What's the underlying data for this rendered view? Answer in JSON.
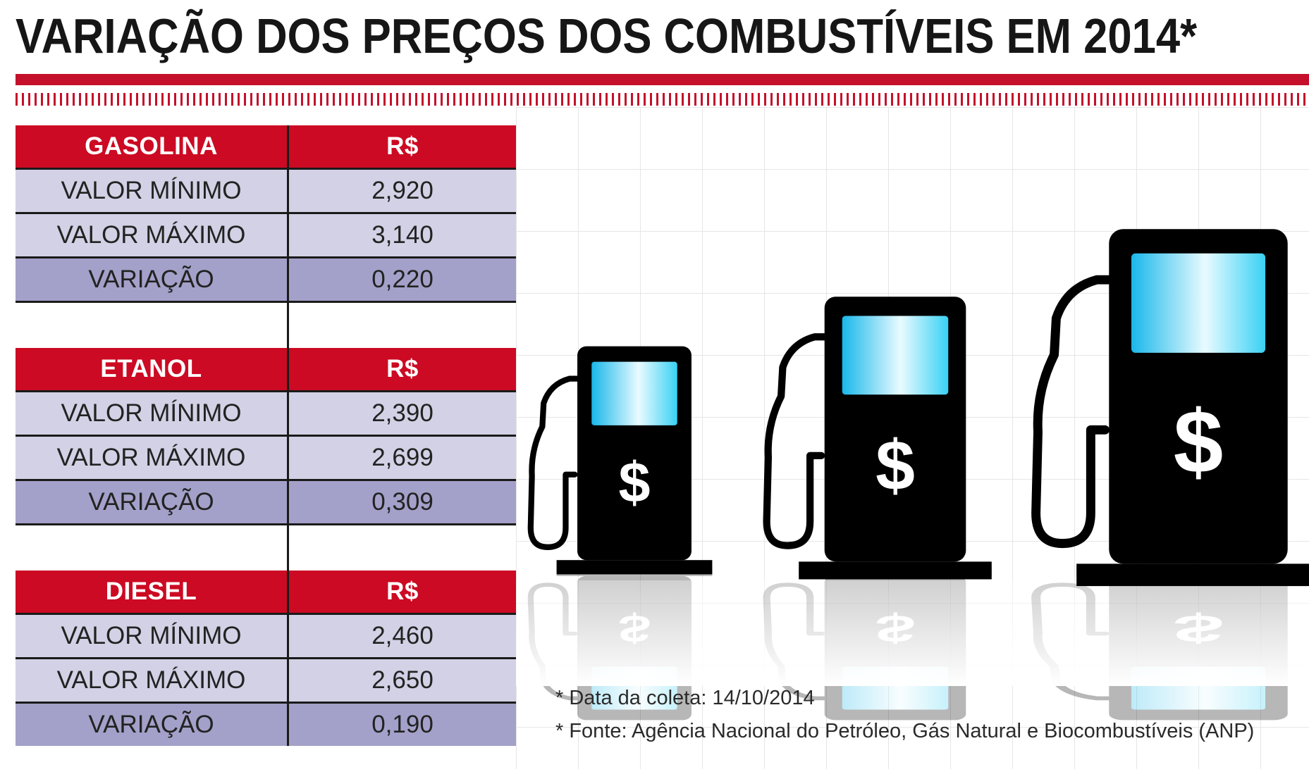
{
  "title": "VARIAÇÃO DOS PREÇOS DOS COMBUSTÍVEIS EM 2014*",
  "colors": {
    "accent_red": "#cc0a23",
    "row_light": "#d2d1e5",
    "row_dark": "#a3a1c9",
    "pump_body": "#000000",
    "pump_screen": "#3fd3f5"
  },
  "chart_data": {
    "type": "table",
    "columns": [
      "",
      "R$"
    ],
    "tables": [
      {
        "fuel": "GASOLINA",
        "currency": "R$",
        "rows": [
          {
            "label": "VALOR MÍNIMO",
            "value": "2,920"
          },
          {
            "label": "VALOR MÁXIMO",
            "value": "3,140"
          },
          {
            "label": "VARIAÇÃO",
            "value": "0,220"
          }
        ]
      },
      {
        "fuel": "ETANOL",
        "currency": "R$",
        "rows": [
          {
            "label": "VALOR MÍNIMO",
            "value": "2,390"
          },
          {
            "label": "VALOR MÁXIMO",
            "value": "2,699"
          },
          {
            "label": "VARIAÇÃO",
            "value": "0,309"
          }
        ]
      },
      {
        "fuel": "DIESEL",
        "currency": "R$",
        "rows": [
          {
            "label": "VALOR MÍNIMO",
            "value": "2,460"
          },
          {
            "label": "VALOR MÁXIMO",
            "value": "2,650"
          },
          {
            "label": "VARIAÇÃO",
            "value": "0,190"
          }
        ]
      }
    ]
  },
  "illustration": {
    "icon": "fuel-pump-icon",
    "symbol": "$",
    "pump_count": 3
  },
  "footnotes": [
    "* Data da coleta: 14/10/2014",
    "* Fonte: Agência Nacional do Petróleo, Gás Natural e Biocombustíveis (ANP)"
  ]
}
